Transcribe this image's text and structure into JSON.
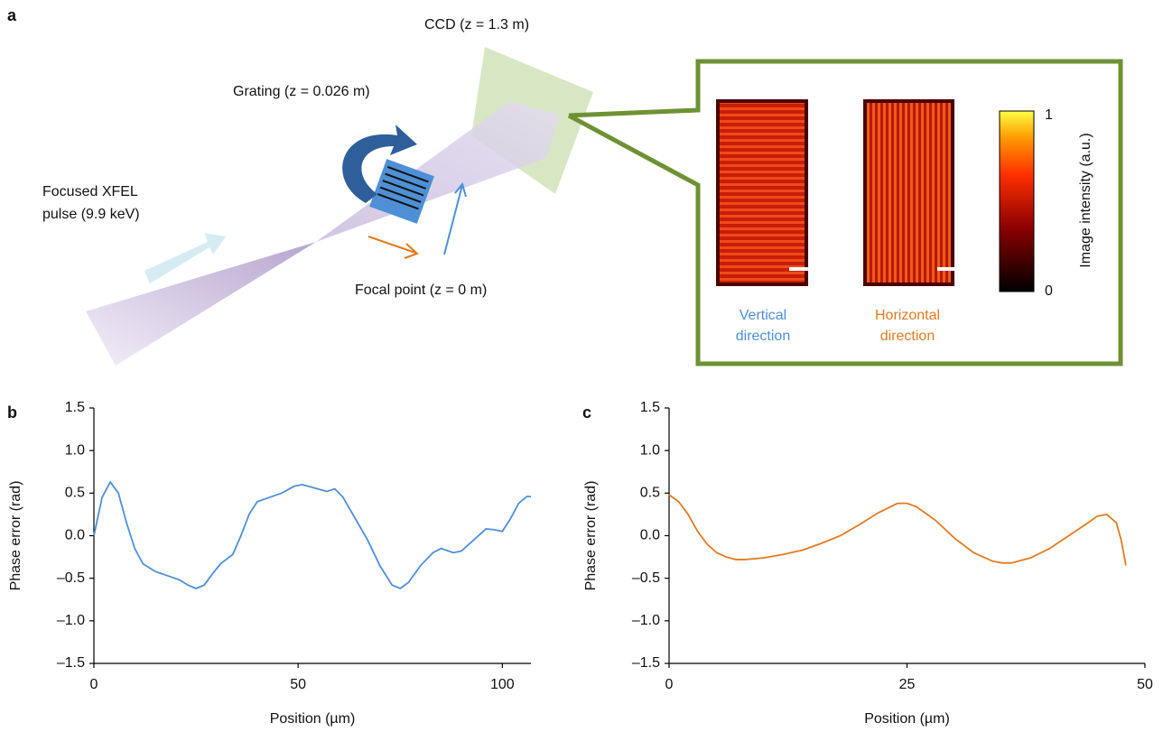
{
  "panel_a": {
    "label": "a",
    "ccd": "CCD (z = 1.3 m)",
    "grating": "Grating (z = 0.026 m)",
    "pulse": [
      "Focused XFEL",
      "pulse (9.9 keV)"
    ],
    "focal_point": "Focal point (z = 0 m)",
    "vertical": [
      "Vertical",
      "direction"
    ],
    "horizontal": [
      "Horizontal",
      "direction"
    ],
    "colorbar_label": "Image intensity (a.u.)",
    "colorbar_max": "1",
    "colorbar_min": "0"
  },
  "chart_data": [
    {
      "type": "line",
      "panel": "b",
      "xlabel": "Position (µm)",
      "ylabel": "Phase error (rad)",
      "color": "#4f8fd6",
      "xlim": [
        0,
        107
      ],
      "xticks": [
        0,
        50,
        100
      ],
      "ylim": [
        -1.5,
        1.5
      ],
      "yticks": [
        {
          "value": -1.5,
          "label": "–1.5"
        },
        {
          "value": -1,
          "label": "–1.0"
        },
        {
          "value": -0.5,
          "label": "–0.5"
        },
        {
          "value": 0,
          "label": "0.0"
        },
        0.5,
        {
          "value": 1,
          "label": "1.0"
        },
        1.5
      ],
      "x": [
        0,
        2,
        4,
        6,
        8,
        10,
        12,
        15,
        18,
        21,
        23,
        25,
        27,
        29,
        31,
        34,
        36,
        38,
        40,
        43,
        46,
        49,
        51,
        54,
        57,
        59,
        61,
        64,
        67,
        70,
        73,
        75,
        77,
        80,
        83,
        85,
        88,
        90,
        93,
        96,
        98,
        100,
        102,
        104,
        106,
        107
      ],
      "values": [
        0.0,
        0.45,
        0.63,
        0.5,
        0.15,
        -0.15,
        -0.33,
        -0.42,
        -0.47,
        -0.52,
        -0.58,
        -0.62,
        -0.58,
        -0.45,
        -0.33,
        -0.22,
        0.0,
        0.25,
        0.4,
        0.45,
        0.5,
        0.58,
        0.6,
        0.56,
        0.52,
        0.55,
        0.45,
        0.2,
        -0.05,
        -0.35,
        -0.58,
        -0.62,
        -0.55,
        -0.35,
        -0.2,
        -0.15,
        -0.2,
        -0.18,
        -0.05,
        0.08,
        0.07,
        0.05,
        0.2,
        0.38,
        0.46,
        0.46
      ]
    },
    {
      "type": "line",
      "panel": "c",
      "xlabel": "Position (µm)",
      "ylabel": "Phase error (rad)",
      "color": "#e07b20",
      "xlim": [
        0,
        50
      ],
      "xticks": [
        0,
        25,
        50
      ],
      "ylim": [
        -1.5,
        1.5
      ],
      "yticks": [
        {
          "value": -1.5,
          "label": "–1.5"
        },
        {
          "value": -1,
          "label": "–1.0"
        },
        {
          "value": -0.5,
          "label": "–0.5"
        },
        {
          "value": 0,
          "label": "0.0"
        },
        0.5,
        {
          "value": 1,
          "label": "1.0"
        },
        1.5
      ],
      "x": [
        0,
        1,
        2,
        3,
        4,
        5,
        6,
        7,
        8,
        10,
        12,
        14,
        16,
        18,
        20,
        22,
        24,
        25,
        26,
        28,
        30,
        32,
        34,
        35,
        36,
        38,
        40,
        42,
        44,
        45,
        46,
        47,
        47.5,
        48
      ],
      "values": [
        0.48,
        0.4,
        0.25,
        0.05,
        -0.1,
        -0.2,
        -0.25,
        -0.28,
        -0.28,
        -0.26,
        -0.22,
        -0.17,
        -0.09,
        0.0,
        0.13,
        0.27,
        0.38,
        0.38,
        0.34,
        0.18,
        -0.03,
        -0.2,
        -0.3,
        -0.32,
        -0.32,
        -0.26,
        -0.15,
        0.0,
        0.15,
        0.23,
        0.25,
        0.15,
        -0.05,
        -0.35
      ]
    }
  ]
}
